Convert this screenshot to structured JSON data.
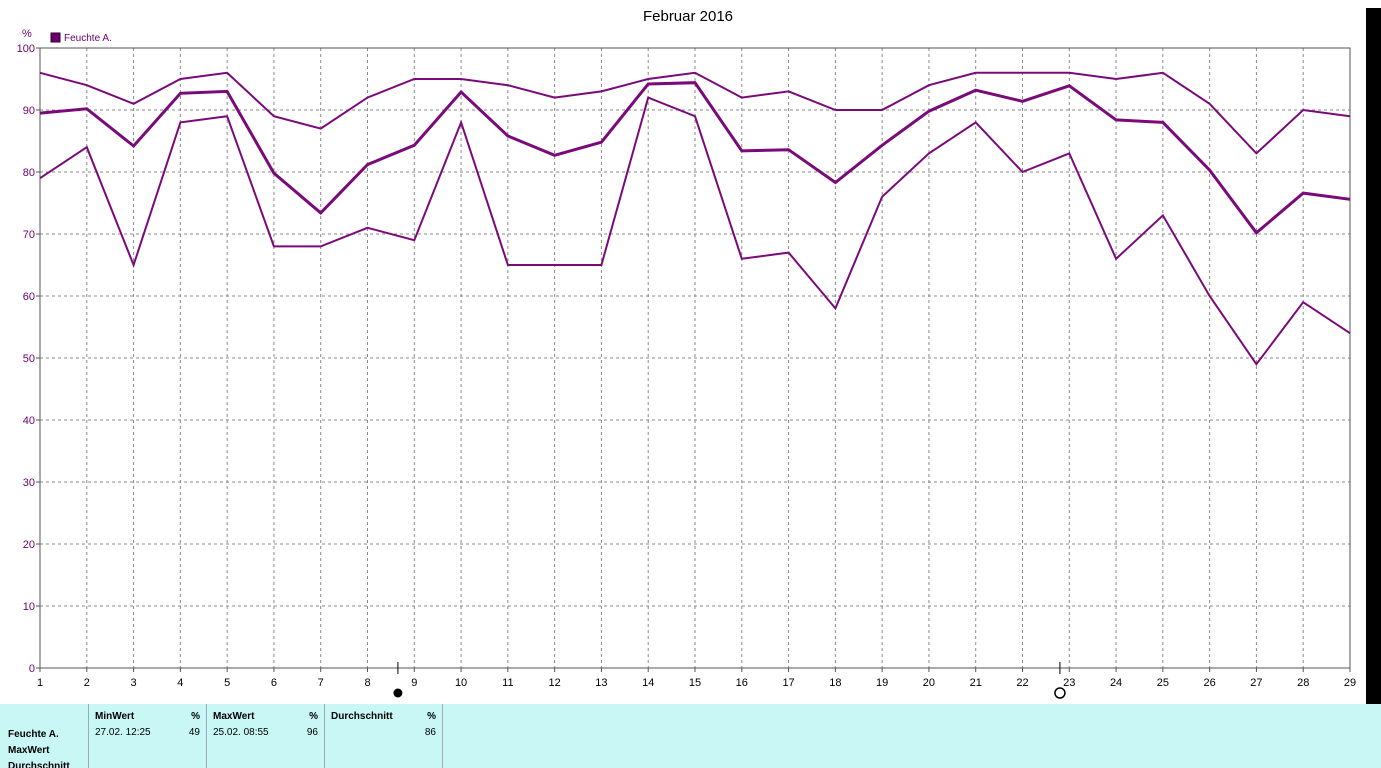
{
  "chart_data": {
    "type": "line",
    "title": "Februar 2016",
    "ylabel": "%",
    "xlabel": "",
    "ylim": [
      0,
      100
    ],
    "y_ticks": [
      0,
      10,
      20,
      30,
      40,
      50,
      60,
      70,
      80,
      90,
      100
    ],
    "x": [
      1,
      2,
      3,
      4,
      5,
      6,
      7,
      8,
      9,
      10,
      11,
      12,
      13,
      14,
      15,
      16,
      17,
      18,
      19,
      20,
      21,
      22,
      23,
      24,
      25,
      26,
      27,
      28,
      29
    ],
    "grid": true,
    "legend_position": "top-left",
    "legend": [
      "Feuchte A."
    ],
    "color": "#7a0a7a",
    "series": [
      {
        "name": "",
        "style": "thin",
        "values": [
          96,
          94,
          91,
          95,
          96,
          89,
          87,
          92,
          95,
          95,
          94,
          92,
          93,
          95,
          96,
          92,
          93,
          90,
          90,
          94,
          96,
          96,
          96,
          95,
          96,
          91,
          83,
          90,
          89
        ]
      },
      {
        "name": "Feuchte A.",
        "style": "bold",
        "values": [
          89.5,
          90.2,
          84.2,
          92.7,
          93.0,
          79.8,
          73.4,
          81.2,
          84.3,
          92.9,
          85.8,
          82.7,
          84.8,
          94.2,
          94.4,
          83.4,
          83.6,
          78.3,
          84.3,
          89.8,
          93.2,
          91.4,
          93.9,
          88.4,
          88.0,
          80.3,
          70.2,
          76.6,
          75.6
        ]
      },
      {
        "name": "",
        "style": "thin",
        "values": [
          79,
          84,
          65,
          88,
          89,
          68,
          68,
          71,
          69,
          88,
          65,
          65,
          65,
          92,
          89,
          66,
          67,
          58,
          76,
          83,
          88,
          80,
          83,
          66,
          73,
          60,
          49,
          59,
          54
        ]
      }
    ],
    "markers": [
      {
        "x": 8.65,
        "symbol": "filled-circle"
      },
      {
        "x": 22.8,
        "symbol": "open-circle"
      }
    ]
  },
  "stats": {
    "row_labels": [
      "Feuchte A.",
      "MaxWert",
      "Durchschnitt"
    ],
    "columns": [
      {
        "header": "MinWert",
        "unit": "%",
        "date": "27.02.  12:25",
        "value": "49"
      },
      {
        "header": "MaxWert",
        "unit": "%",
        "date": "25.02.  08:55",
        "value": "96"
      },
      {
        "header": "Durchschnitt",
        "unit": "%",
        "date": "",
        "value": "86"
      }
    ]
  }
}
